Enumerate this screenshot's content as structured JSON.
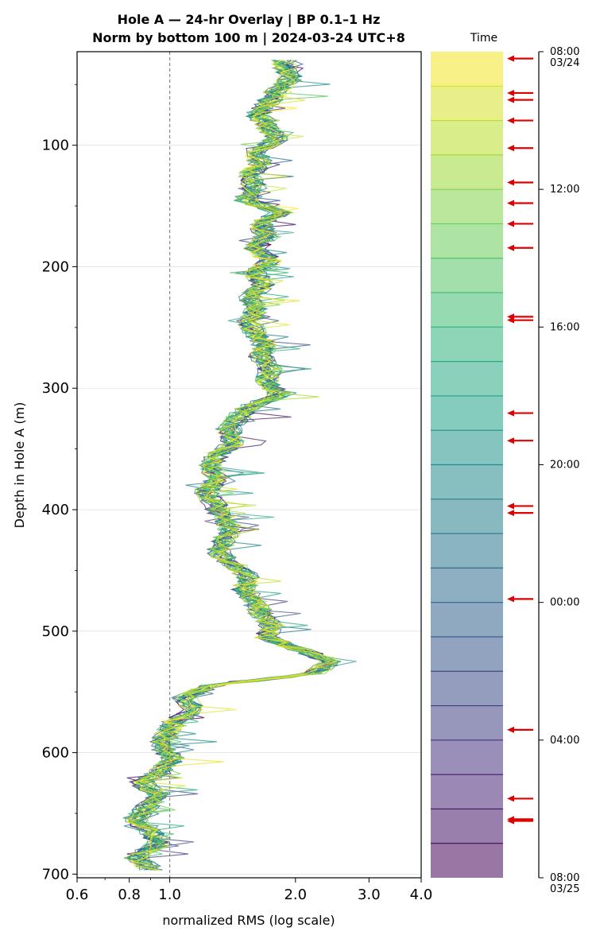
{
  "chart_data": {
    "type": "line",
    "title_line1": "Hole A — 24-hr Overlay  |  BP 0.1–1 Hz",
    "title_line2": "Norm by bottom 100 m  |  2024-03-24 UTC+8",
    "xlabel": "normalized RMS  (log scale)",
    "ylabel": "Depth in Hole A (m)",
    "xscale": "log",
    "xlim": [
      0.6,
      4.0
    ],
    "ylim": [
      703,
      23
    ],
    "y_inverted": true,
    "xticks": [
      0.6,
      0.8,
      1.0,
      2.0,
      3.0,
      4.0
    ],
    "xtick_labels": [
      "0.6",
      "0.8",
      "1.0",
      "2.0",
      "3.0",
      "4.0"
    ],
    "yticks": [
      100,
      200,
      300,
      400,
      500,
      600,
      700
    ],
    "ytick_labels": [
      "100",
      "200",
      "300",
      "400",
      "500",
      "600",
      "700"
    ],
    "grid": "horizontal",
    "reference_line_x": 1.0,
    "n_series": 24,
    "colormap": "viridis",
    "mean_profile": {
      "depth": [
        35,
        45,
        55,
        65,
        75,
        85,
        95,
        105,
        115,
        125,
        135,
        145,
        155,
        165,
        175,
        185,
        195,
        205,
        215,
        225,
        235,
        245,
        255,
        265,
        275,
        285,
        295,
        305,
        315,
        325,
        335,
        345,
        355,
        365,
        375,
        385,
        395,
        405,
        415,
        425,
        435,
        445,
        455,
        465,
        475,
        485,
        495,
        505,
        515,
        525,
        535,
        545,
        555,
        565,
        575,
        585,
        595,
        605,
        615,
        625,
        635,
        645,
        655,
        665,
        675,
        685,
        695
      ],
      "values": [
        1.88,
        1.95,
        1.82,
        1.72,
        1.62,
        1.7,
        1.82,
        1.6,
        1.65,
        1.55,
        1.6,
        1.5,
        1.85,
        1.65,
        1.7,
        1.6,
        1.75,
        1.6,
        1.68,
        1.55,
        1.62,
        1.55,
        1.6,
        1.7,
        1.65,
        1.75,
        1.7,
        1.85,
        1.55,
        1.45,
        1.38,
        1.42,
        1.3,
        1.25,
        1.3,
        1.22,
        1.28,
        1.32,
        1.4,
        1.35,
        1.3,
        1.42,
        1.55,
        1.5,
        1.6,
        1.65,
        1.75,
        1.7,
        2.05,
        2.45,
        2.2,
        1.25,
        1.08,
        1.15,
        1.02,
        0.98,
        0.95,
        1.02,
        0.95,
        0.85,
        0.95,
        0.88,
        0.82,
        0.9,
        0.95,
        0.82,
        0.9
      ]
    },
    "colorbar": {
      "title": "Time",
      "bins": 24,
      "ticks": [
        {
          "label": "08:00\n03/24",
          "hour": 0
        },
        {
          "label": "12:00",
          "hour": 4
        },
        {
          "label": "16:00",
          "hour": 8
        },
        {
          "label": "20:00",
          "hour": 12
        },
        {
          "label": "00:00",
          "hour": 16
        },
        {
          "label": "04:00",
          "hour": 20
        },
        {
          "label": "08:00\n03/25",
          "hour": 24
        }
      ],
      "arrow_hours": [
        0.2,
        1.2,
        1.4,
        2.0,
        2.8,
        3.8,
        4.4,
        5.0,
        5.7,
        7.7,
        7.8,
        10.5,
        11.3,
        13.2,
        13.4,
        15.9,
        19.7,
        21.7,
        22.3,
        22.35
      ]
    }
  }
}
